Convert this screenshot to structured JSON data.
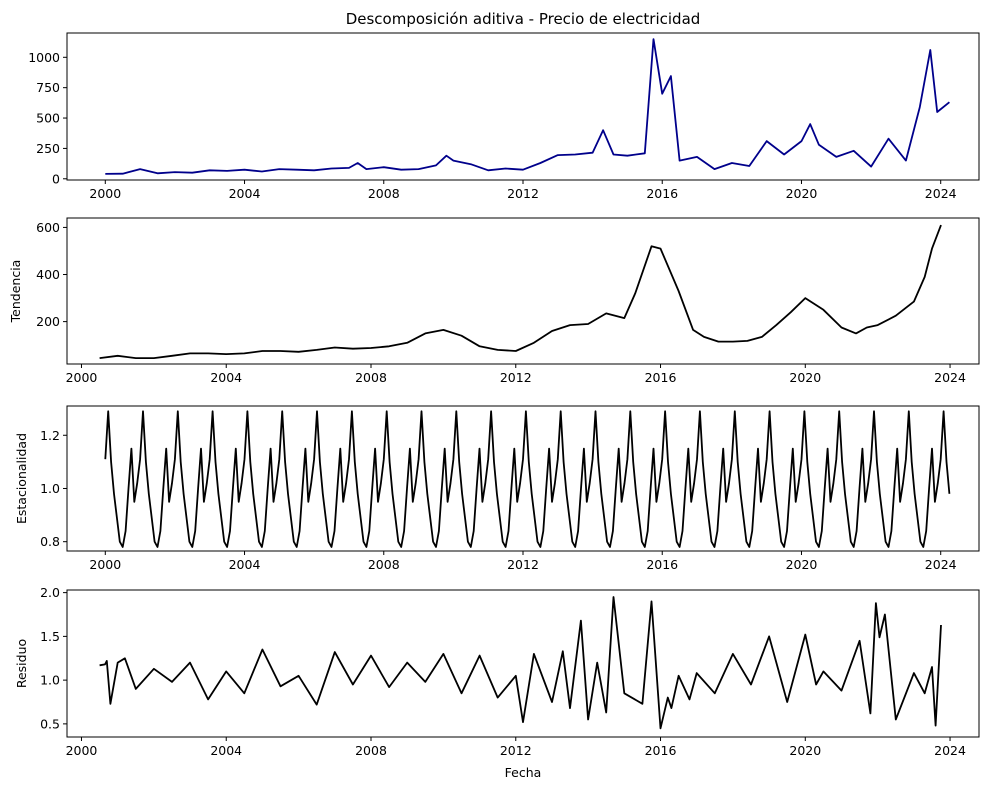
{
  "chart_data": [
    {
      "type": "line",
      "title": "Descomposición aditiva - Precio de electricidad",
      "xlabel": "",
      "ylabel": "",
      "xlim": [
        1998.9,
        2025.1
      ],
      "ylim": [
        -10,
        1200
      ],
      "xticks": [
        2000,
        2004,
        2008,
        2012,
        2016,
        2020,
        2024
      ],
      "xtick_labels": [
        "2000",
        "2004",
        "2008",
        "2012",
        "2016",
        "2020",
        "2024"
      ],
      "yticks": [
        0,
        250,
        500,
        750,
        1000
      ],
      "ytick_labels": [
        "0",
        "250",
        "500",
        "750",
        "1000"
      ],
      "color": "#00008b",
      "series": [
        {
          "x": [
            2000.0,
            2000.5,
            2001.0,
            2001.5,
            2002.0,
            2002.5,
            2003.0,
            2003.5,
            2004.0,
            2004.5,
            2005.0,
            2005.5,
            2006.0,
            2006.5,
            2007.0,
            2007.25,
            2007.5,
            2008.0,
            2008.5,
            2009.0,
            2009.5,
            2009.8,
            2010.0,
            2010.5,
            2011.0,
            2011.5,
            2012.0,
            2012.5,
            2013.0,
            2013.5,
            2014.0,
            2014.3,
            2014.6,
            2015.0,
            2015.5,
            2015.75,
            2016.0,
            2016.25,
            2016.5,
            2017.0,
            2017.5,
            2018.0,
            2018.5,
            2019.0,
            2019.5,
            2020.0,
            2020.25,
            2020.5,
            2021.0,
            2021.5,
            2022.0,
            2022.5,
            2023.0,
            2023.4,
            2023.7,
            2023.9,
            2024.25
          ],
          "values": [
            40,
            42,
            80,
            45,
            55,
            50,
            70,
            65,
            75,
            60,
            80,
            75,
            70,
            85,
            90,
            130,
            80,
            95,
            75,
            80,
            110,
            190,
            150,
            120,
            70,
            85,
            75,
            130,
            195,
            200,
            215,
            400,
            200,
            190,
            210,
            1150,
            700,
            845,
            150,
            180,
            80,
            130,
            105,
            310,
            200,
            310,
            450,
            280,
            180,
            230,
            100,
            330,
            150,
            590,
            1060,
            550,
            630
          ],
          "name": ""
        }
      ]
    },
    {
      "type": "line",
      "title": "",
      "xlabel": "",
      "ylabel": "Tendencia",
      "xlim": [
        1999.6,
        2024.8
      ],
      "ylim": [
        20,
        640
      ],
      "xticks": [
        2000,
        2004,
        2008,
        2012,
        2016,
        2020,
        2024
      ],
      "xtick_labels": [
        "2000",
        "2004",
        "2008",
        "2012",
        "2016",
        "2020",
        "2024"
      ],
      "yticks": [
        200,
        400,
        600
      ],
      "ytick_labels": [
        "200",
        "400",
        "600"
      ],
      "color": "#000000",
      "series": [
        {
          "x": [
            2000.5,
            2001.0,
            2001.5,
            2002.0,
            2002.5,
            2003.0,
            2003.5,
            2004.0,
            2004.5,
            2005.0,
            2005.5,
            2006.0,
            2006.5,
            2007.0,
            2007.5,
            2008.0,
            2008.5,
            2009.0,
            2009.5,
            2010.0,
            2010.5,
            2011.0,
            2011.5,
            2012.0,
            2012.5,
            2013.0,
            2013.5,
            2014.0,
            2014.5,
            2015.0,
            2015.3,
            2015.75,
            2016.0,
            2016.5,
            2016.9,
            2017.2,
            2017.6,
            2018.0,
            2018.4,
            2018.8,
            2019.2,
            2019.6,
            2020.0,
            2020.5,
            2021.0,
            2021.4,
            2021.7,
            2022.0,
            2022.5,
            2023.0,
            2023.3,
            2023.5,
            2023.75
          ],
          "values": [
            45,
            55,
            45,
            45,
            55,
            65,
            65,
            62,
            65,
            75,
            75,
            72,
            80,
            90,
            85,
            88,
            95,
            110,
            150,
            165,
            140,
            95,
            80,
            75,
            110,
            160,
            185,
            190,
            235,
            215,
            320,
            520,
            510,
            330,
            165,
            135,
            115,
            115,
            118,
            135,
            185,
            240,
            300,
            250,
            175,
            150,
            175,
            185,
            225,
            285,
            390,
            510,
            610
          ],
          "name": ""
        }
      ]
    },
    {
      "type": "line",
      "title": "",
      "xlabel": "",
      "ylabel": "Estacionalidad",
      "xlim": [
        1998.9,
        2025.1
      ],
      "ylim": [
        0.765,
        1.31
      ],
      "xticks": [
        2000,
        2004,
        2008,
        2012,
        2016,
        2020,
        2024
      ],
      "xtick_labels": [
        "2000",
        "2004",
        "2008",
        "2012",
        "2016",
        "2020",
        "2024"
      ],
      "yticks": [
        0.8,
        1.0,
        1.2
      ],
      "ytick_labels": [
        "0.8",
        "1.0",
        "1.2"
      ],
      "color": "#000000",
      "seasonal_pattern": {
        "start": 2000.0,
        "end": 2024.25,
        "monthly_values": [
          1.11,
          1.29,
          1.1,
          0.98,
          0.89,
          0.8,
          0.78,
          0.84,
          1.0,
          1.15,
          0.95,
          1.02
        ]
      }
    },
    {
      "type": "line",
      "title": "",
      "xlabel": "Fecha",
      "ylabel": "Residuo",
      "xlim": [
        1999.6,
        2024.8
      ],
      "ylim": [
        0.35,
        2.03
      ],
      "xticks": [
        2000,
        2004,
        2008,
        2012,
        2016,
        2020,
        2024
      ],
      "xtick_labels": [
        "2000",
        "2004",
        "2008",
        "2012",
        "2016",
        "2020",
        "2024"
      ],
      "yticks": [
        0.5,
        1.0,
        1.5,
        2.0
      ],
      "ytick_labels": [
        "0.5",
        "1.0",
        "1.5",
        "2.0"
      ],
      "color": "#000000",
      "series": [
        {
          "x": [
            2000.5,
            2000.65,
            2000.7,
            2000.8,
            2001.0,
            2001.2,
            2001.5,
            2002.0,
            2002.5,
            2003.0,
            2003.5,
            2004.0,
            2004.5,
            2005.0,
            2005.5,
            2006.0,
            2006.5,
            2007.0,
            2007.5,
            2008.0,
            2008.5,
            2009.0,
            2009.5,
            2010.0,
            2010.5,
            2011.0,
            2011.5,
            2012.0,
            2012.2,
            2012.5,
            2013.0,
            2013.3,
            2013.5,
            2013.8,
            2014.0,
            2014.25,
            2014.5,
            2014.7,
            2015.0,
            2015.5,
            2015.75,
            2016.0,
            2016.2,
            2016.3,
            2016.5,
            2016.8,
            2017.0,
            2017.5,
            2018.0,
            2018.5,
            2019.0,
            2019.5,
            2020.0,
            2020.3,
            2020.5,
            2021.0,
            2021.5,
            2021.8,
            2021.95,
            2022.05,
            2022.2,
            2022.5,
            2023.0,
            2023.3,
            2023.5,
            2023.6,
            2023.75
          ],
          "values": [
            1.17,
            1.18,
            1.22,
            0.73,
            1.2,
            1.25,
            0.9,
            1.13,
            0.98,
            1.2,
            0.78,
            1.1,
            0.85,
            1.35,
            0.93,
            1.05,
            0.72,
            1.32,
            0.95,
            1.28,
            0.92,
            1.2,
            0.98,
            1.3,
            0.85,
            1.28,
            0.8,
            1.05,
            0.52,
            1.3,
            0.75,
            1.33,
            0.68,
            1.68,
            0.55,
            1.2,
            0.63,
            1.95,
            0.85,
            0.73,
            1.9,
            0.45,
            0.8,
            0.68,
            1.05,
            0.78,
            1.08,
            0.85,
            1.3,
            0.95,
            1.5,
            0.75,
            1.52,
            0.95,
            1.1,
            0.88,
            1.45,
            0.62,
            1.88,
            1.49,
            1.75,
            0.55,
            1.08,
            0.85,
            1.15,
            0.48,
            1.63
          ],
          "name": ""
        }
      ]
    }
  ]
}
